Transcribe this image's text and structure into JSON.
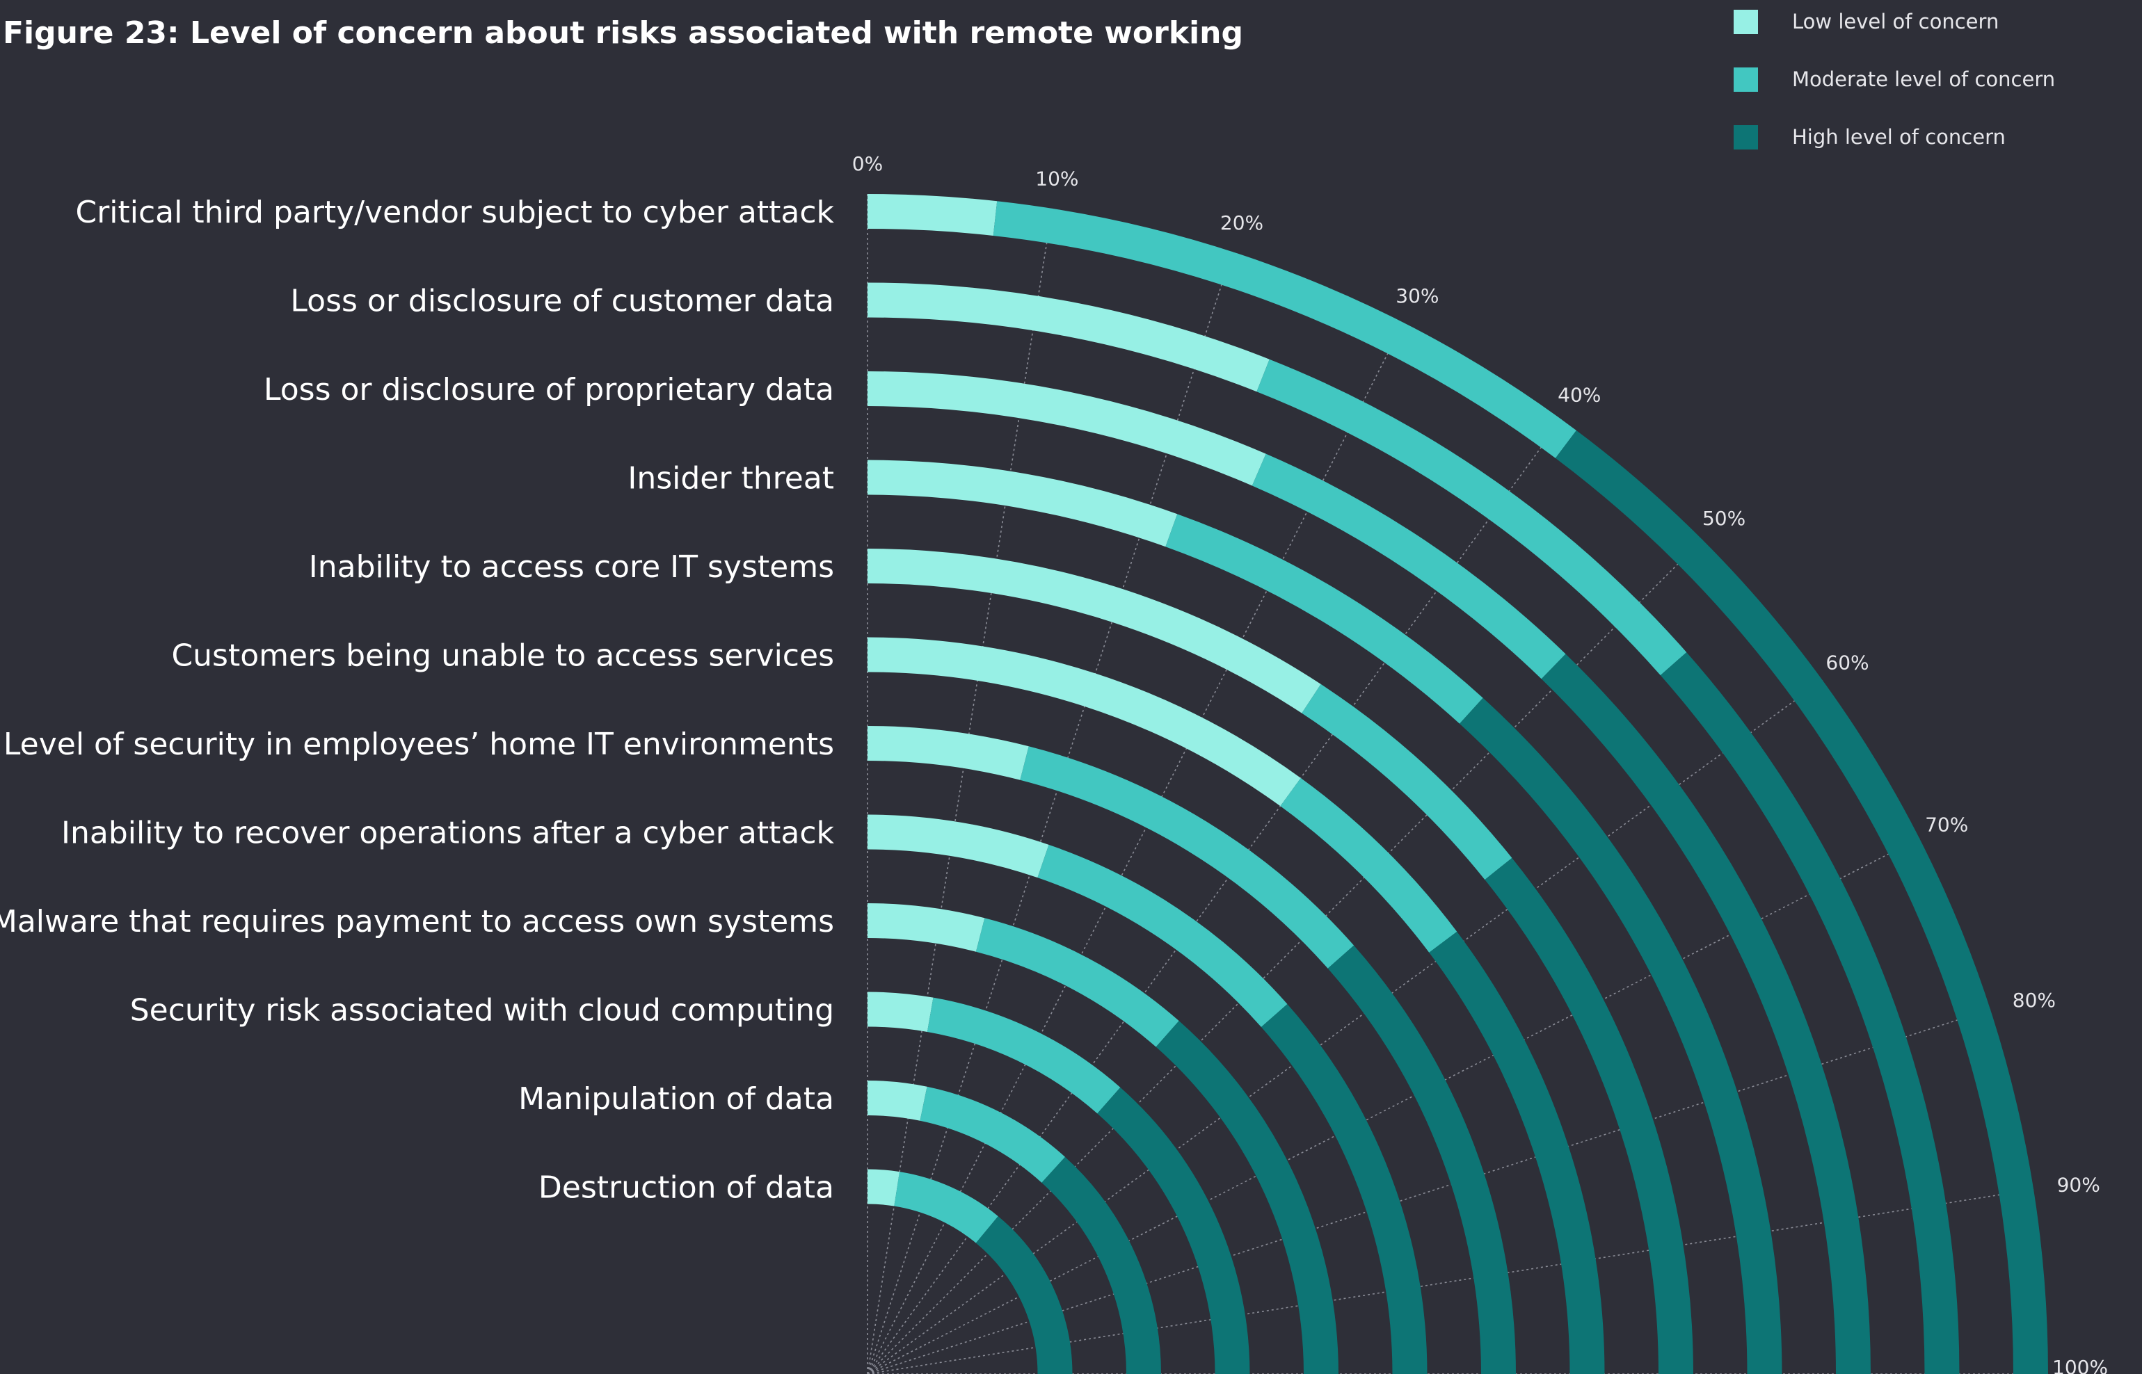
{
  "chart_data": {
    "type": "radial-stacked-bar",
    "title": "Figure 23: Level of concern about risks associated with remote working",
    "xlabel": "",
    "ylabel": "",
    "xlim": [
      0,
      100
    ],
    "legend_position": "top-right",
    "grid": true,
    "axis_ticks": [
      "0%",
      "10%",
      "20%",
      "30%",
      "40%",
      "50%",
      "60%",
      "70%",
      "80%",
      "90%",
      "100%"
    ],
    "categories": [
      "Critical third party/vendor subject to cyber attack",
      "Loss or disclosure of customer data",
      "Loss or disclosure of proprietary data",
      "Insider threat",
      "Inability to access core IT systems",
      "Customers being unable to access services",
      "Level of security in employees’ home IT environments",
      "Inability to recover operations after a cyber attack",
      "Malware that requires payment to access own systems",
      "Security risk associated with cloud computing",
      "Manipulation of data",
      "Destruction of data"
    ],
    "series": [
      {
        "name": "Low level of concern",
        "color": "#97f0e5",
        "values": [
          7,
          24,
          26,
          22,
          37,
          40,
          16,
          21,
          16,
          11,
          13,
          10
        ]
      },
      {
        "name": "Moderate level of concern",
        "color": "#42c7c1",
        "values": [
          34,
          30,
          23,
          25,
          20,
          19,
          38,
          33,
          30,
          35,
          34,
          34
        ]
      },
      {
        "name": "High level of concern",
        "color": "#0d7575",
        "values": [
          59,
          46,
          51,
          53,
          43,
          41,
          46,
          46,
          54,
          54,
          53,
          56
        ]
      }
    ]
  }
}
